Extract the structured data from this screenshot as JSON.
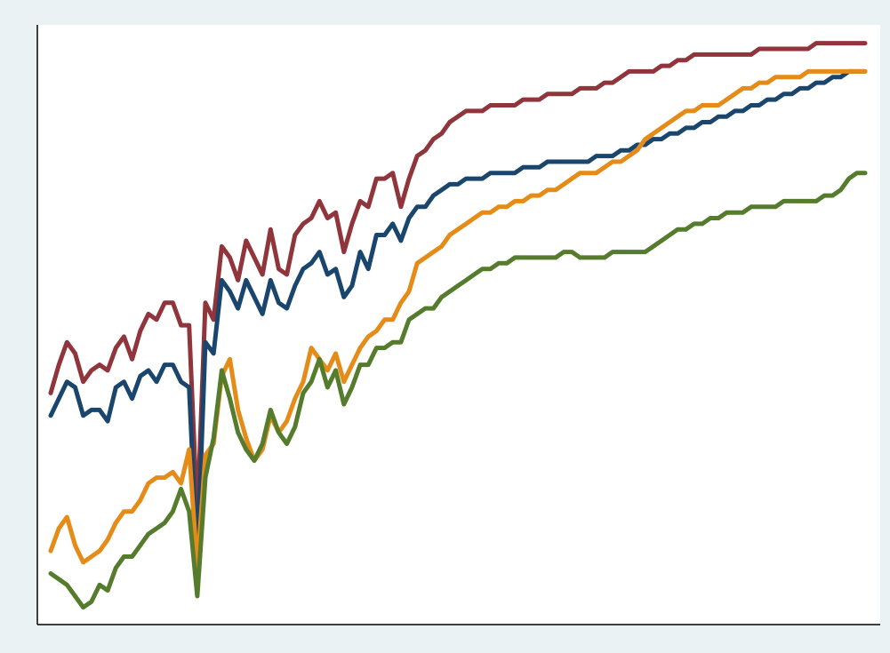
{
  "chart_data": {
    "type": "line",
    "title": "",
    "xlabel": "",
    "ylabel": "",
    "grid": false,
    "legend": "none",
    "xlim": [
      0,
      100
    ],
    "ylim": [
      0,
      100
    ],
    "colors": {
      "background": "#eaf2f3",
      "plot_background": "#ffffff",
      "axis": "#000000"
    },
    "series": [
      {
        "color": "#90353b",
        "x": [
          0,
          1,
          2,
          3,
          4,
          5,
          6,
          7,
          8,
          9,
          10,
          11,
          12,
          13,
          14,
          15,
          16,
          17,
          18,
          19,
          20,
          21,
          22,
          23,
          24,
          25,
          26,
          27,
          28,
          29,
          30,
          31,
          32,
          33,
          34,
          35,
          36,
          37,
          38,
          39,
          40,
          41,
          42,
          43,
          44,
          45,
          46,
          47,
          48,
          49,
          50,
          51,
          52,
          53,
          54,
          55,
          56,
          57,
          58,
          59,
          60,
          61,
          62,
          63,
          64,
          65,
          66,
          67,
          68,
          69,
          70,
          71,
          72,
          73,
          74,
          75,
          76,
          77,
          78,
          79,
          80,
          81,
          82,
          83,
          84,
          85,
          86,
          87,
          88,
          89,
          90,
          91,
          92,
          93,
          94,
          95,
          96,
          97,
          98,
          99,
          100
        ],
        "values": [
          39,
          44,
          48,
          46,
          41,
          43,
          44,
          43,
          47,
          49,
          45,
          50,
          53,
          52,
          55,
          55,
          51,
          51,
          17,
          55,
          52,
          65,
          63,
          59,
          66,
          63,
          60,
          68,
          61,
          60,
          67,
          69,
          70,
          73,
          70,
          71,
          64,
          69,
          73,
          72,
          77,
          77,
          78,
          72,
          77,
          81,
          82,
          84,
          85,
          87,
          88,
          89,
          89,
          89,
          90,
          90,
          90,
          90,
          91,
          91,
          91,
          92,
          92,
          92,
          92,
          93,
          93,
          93,
          94,
          94,
          95,
          96,
          96,
          96,
          96,
          97,
          97,
          98,
          98,
          99,
          99,
          99,
          99,
          99,
          99,
          99,
          99,
          100,
          100,
          100,
          100,
          100,
          100,
          100,
          101,
          101,
          101,
          101,
          101,
          101,
          101
        ],
        "x_note": ""
      },
      {
        "color": "#1a466e",
        "x": [
          0,
          1,
          2,
          3,
          4,
          5,
          6,
          7,
          8,
          9,
          10,
          11,
          12,
          13,
          14,
          15,
          16,
          17,
          18,
          19,
          20,
          21,
          22,
          23,
          24,
          25,
          26,
          27,
          28,
          29,
          30,
          31,
          32,
          33,
          34,
          35,
          36,
          37,
          38,
          39,
          40,
          41,
          42,
          43,
          44,
          45,
          46,
          47,
          48,
          49,
          50,
          51,
          52,
          53,
          54,
          55,
          56,
          57,
          58,
          59,
          60,
          61,
          62,
          63,
          64,
          65,
          66,
          67,
          68,
          69,
          70,
          71,
          72,
          73,
          74,
          75,
          76,
          77,
          78,
          79,
          80,
          81,
          82,
          83,
          84,
          85,
          86,
          87,
          88,
          89,
          90,
          91,
          92,
          93,
          94,
          95,
          96,
          97,
          98,
          99,
          100
        ],
        "values": [
          35,
          38,
          41,
          40,
          35,
          36,
          36,
          34,
          40,
          41,
          38,
          42,
          43,
          41,
          44,
          44,
          41,
          40,
          9,
          48,
          46,
          59,
          57,
          54,
          59,
          56,
          53,
          59,
          55,
          54,
          58,
          61,
          62,
          64,
          60,
          61,
          56,
          58,
          64,
          61,
          67,
          67,
          69,
          66,
          70,
          72,
          72,
          74,
          75,
          76,
          76,
          77,
          77,
          77,
          78,
          78,
          78,
          78,
          79,
          79,
          79,
          80,
          80,
          80,
          80,
          80,
          80,
          81,
          81,
          81,
          82,
          82,
          83,
          83,
          84,
          84,
          85,
          85,
          86,
          86,
          87,
          87,
          88,
          88,
          89,
          89,
          90,
          90,
          91,
          91,
          92,
          92,
          93,
          93,
          94,
          94,
          95,
          95,
          96,
          96,
          96
        ],
        "x_note": ""
      },
      {
        "color": "#e58b18",
        "x": [
          0,
          1,
          2,
          3,
          4,
          5,
          6,
          7,
          8,
          9,
          10,
          11,
          12,
          13,
          14,
          15,
          16,
          17,
          18,
          19,
          20,
          21,
          22,
          23,
          24,
          25,
          26,
          27,
          28,
          29,
          30,
          31,
          32,
          33,
          34,
          35,
          36,
          37,
          38,
          39,
          40,
          41,
          42,
          43,
          44,
          45,
          46,
          47,
          48,
          49,
          50,
          51,
          52,
          53,
          54,
          55,
          56,
          57,
          58,
          59,
          60,
          61,
          62,
          63,
          64,
          65,
          66,
          67,
          68,
          69,
          70,
          71,
          72,
          73,
          74,
          75,
          76,
          77,
          78,
          79,
          80,
          81,
          82,
          83,
          84,
          85,
          86,
          87,
          88,
          89,
          90,
          91,
          92,
          93,
          94,
          95,
          96,
          97,
          98,
          99,
          100
        ],
        "values": [
          11,
          15,
          17,
          12,
          9,
          10,
          11,
          13,
          16,
          18,
          18,
          20,
          23,
          24,
          24,
          25,
          23,
          29,
          8,
          28,
          30,
          42,
          45,
          36,
          31,
          27,
          29,
          35,
          32,
          34,
          38,
          41,
          47,
          45,
          43,
          46,
          41,
          44,
          47,
          49,
          50,
          52,
          52,
          55,
          57,
          62,
          63,
          64,
          65,
          67,
          68,
          69,
          70,
          71,
          71,
          72,
          72,
          73,
          73,
          74,
          74,
          75,
          75,
          76,
          77,
          78,
          78,
          78,
          79,
          80,
          80,
          81,
          82,
          84,
          85,
          86,
          87,
          88,
          89,
          89,
          90,
          90,
          90,
          91,
          92,
          93,
          93,
          94,
          94,
          95,
          95,
          95,
          95,
          96,
          96,
          96,
          96,
          96,
          96,
          96,
          96
        ],
        "x_note": ""
      },
      {
        "color": "#557b2c",
        "x": [
          0,
          1,
          2,
          3,
          4,
          5,
          6,
          7,
          8,
          9,
          10,
          11,
          12,
          13,
          14,
          15,
          16,
          17,
          18,
          19,
          20,
          21,
          22,
          23,
          24,
          25,
          26,
          27,
          28,
          29,
          30,
          31,
          32,
          33,
          34,
          35,
          36,
          37,
          38,
          39,
          40,
          41,
          42,
          43,
          44,
          45,
          46,
          47,
          48,
          49,
          50,
          51,
          52,
          53,
          54,
          55,
          56,
          57,
          58,
          59,
          60,
          61,
          62,
          63,
          64,
          65,
          66,
          67,
          68,
          69,
          70,
          71,
          72,
          73,
          74,
          75,
          76,
          77,
          78,
          79,
          80,
          81,
          82,
          83,
          84,
          85,
          86,
          87,
          88,
          89,
          90,
          91,
          92,
          93,
          94,
          95,
          96,
          97,
          98,
          99,
          100
        ],
        "values": [
          7,
          6,
          5,
          3,
          1,
          2,
          5,
          4,
          8,
          10,
          10,
          12,
          14,
          15,
          16,
          18,
          22,
          18,
          3,
          24,
          31,
          43,
          38,
          32,
          29,
          27,
          30,
          36,
          32,
          30,
          33,
          39,
          41,
          45,
          40,
          43,
          37,
          40,
          44,
          44,
          47,
          47,
          48,
          48,
          52,
          53,
          54,
          54,
          56,
          57,
          58,
          59,
          60,
          61,
          61,
          62,
          62,
          63,
          63,
          63,
          63,
          63,
          63,
          64,
          64,
          63,
          63,
          63,
          63,
          64,
          64,
          64,
          64,
          64,
          65,
          66,
          67,
          68,
          68,
          69,
          69,
          70,
          70,
          71,
          71,
          71,
          72,
          72,
          72,
          72,
          73,
          73,
          73,
          73,
          73,
          74,
          74,
          75,
          77,
          78,
          78
        ],
        "x_note": ""
      }
    ]
  }
}
